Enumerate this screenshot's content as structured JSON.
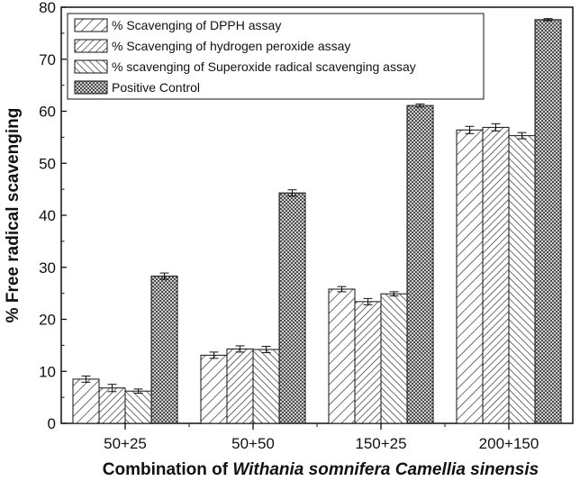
{
  "chart_data": {
    "type": "bar",
    "title": "",
    "xlabel_prefix": "Combination of ",
    "xlabel_italic": "Withania somnifera Camellia sinensis",
    "ylabel": "% Free radical scavenging",
    "ylim": [
      0,
      80
    ],
    "yticks": [
      0,
      10,
      20,
      30,
      40,
      50,
      60,
      70,
      80
    ],
    "categories": [
      "50+25",
      "50+50",
      "150+25",
      "200+150"
    ],
    "series": [
      {
        "name": "% Scavenging of DPPH assay",
        "pattern": "diag-right-sparse",
        "values": [
          8.5,
          13.1,
          25.8,
          56.4
        ],
        "errors": [
          0.6,
          0.6,
          0.5,
          0.7
        ]
      },
      {
        "name": "% Scavenging of hydrogen peroxide assay",
        "pattern": "diag-right-dense",
        "values": [
          6.8,
          14.3,
          23.4,
          56.9
        ],
        "errors": [
          0.7,
          0.6,
          0.6,
          0.7
        ]
      },
      {
        "name": "% scavenging of Superoxide radical scavenging assay",
        "pattern": "diag-left",
        "values": [
          6.2,
          14.2,
          24.9,
          55.3
        ],
        "errors": [
          0.4,
          0.6,
          0.4,
          0.6
        ]
      },
      {
        "name": "Positive Control",
        "pattern": "crosshatch",
        "values": [
          28.3,
          44.3,
          61.1,
          77.6
        ],
        "errors": [
          0.6,
          0.6,
          0.3,
          0.2
        ]
      }
    ],
    "grid": false,
    "legend_position": "top-left"
  }
}
